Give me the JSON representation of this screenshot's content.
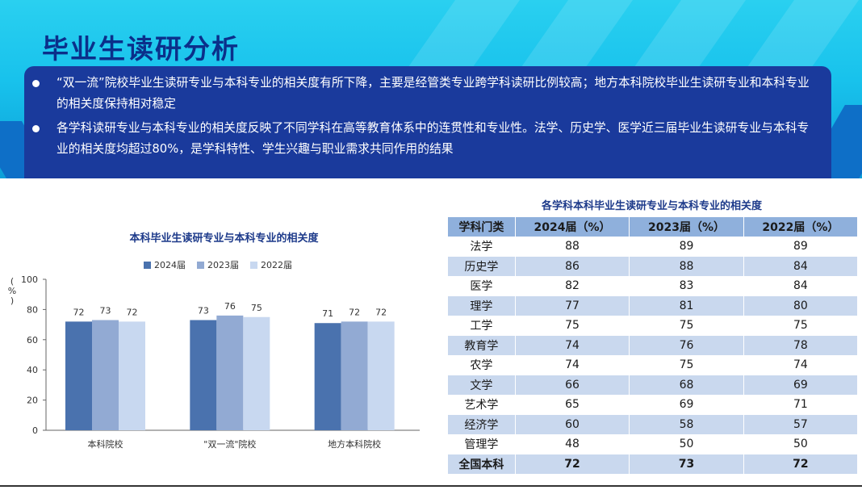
{
  "page": {
    "title": "毕业生读研分析",
    "bullets": [
      "“双一流”院校毕业生读研专业与本科专业的相关度有所下降，主要是经管类专业跨学科读研比例较高；地方本科院校毕业生读研专业和本科专业的相关度保持相对稳定",
      "各学科读研专业与本科专业的相关度反映了不同学科在高等教育体系中的连贯性和专业性。法学、历史学、医学近三届毕业生读研专业与本科专业的相关度均超过80%，是学科特性、学生兴趣与职业需求共同作用的结果"
    ]
  },
  "chart_data": {
    "type": "bar",
    "title": "本科毕业生读研专业与本科专业的相关度",
    "ylabel": "%",
    "ylim": [
      0,
      100
    ],
    "yticks": [
      0,
      20,
      40,
      60,
      80,
      100
    ],
    "grid": false,
    "legend_position": "top",
    "categories": [
      "本科院校",
      "\"双一流\"院校",
      "地方本科院校"
    ],
    "series": [
      {
        "name": "2024届",
        "values": [
          72,
          73,
          71
        ],
        "color": "#4a72ae"
      },
      {
        "name": "2023届",
        "values": [
          73,
          76,
          72
        ],
        "color": "#92aad3"
      },
      {
        "name": "2022届",
        "values": [
          72,
          75,
          72
        ],
        "color": "#c8d8f0"
      }
    ]
  },
  "table": {
    "title": "各学科本科毕业生读研专业与本科专业的相关度",
    "headers": [
      "学科门类",
      "2024届（%）",
      "2023届（%）",
      "2022届（%）"
    ],
    "rows": [
      [
        "法学",
        "88",
        "89",
        "89"
      ],
      [
        "历史学",
        "86",
        "88",
        "84"
      ],
      [
        "医学",
        "82",
        "83",
        "84"
      ],
      [
        "理学",
        "77",
        "81",
        "80"
      ],
      [
        "工学",
        "75",
        "75",
        "75"
      ],
      [
        "教育学",
        "74",
        "76",
        "78"
      ],
      [
        "农学",
        "74",
        "75",
        "74"
      ],
      [
        "文学",
        "66",
        "68",
        "69"
      ],
      [
        "艺术学",
        "65",
        "69",
        "71"
      ],
      [
        "经济学",
        "60",
        "58",
        "57"
      ],
      [
        "管理学",
        "48",
        "50",
        "50"
      ],
      [
        "全国本科",
        "72",
        "73",
        "72"
      ]
    ]
  }
}
